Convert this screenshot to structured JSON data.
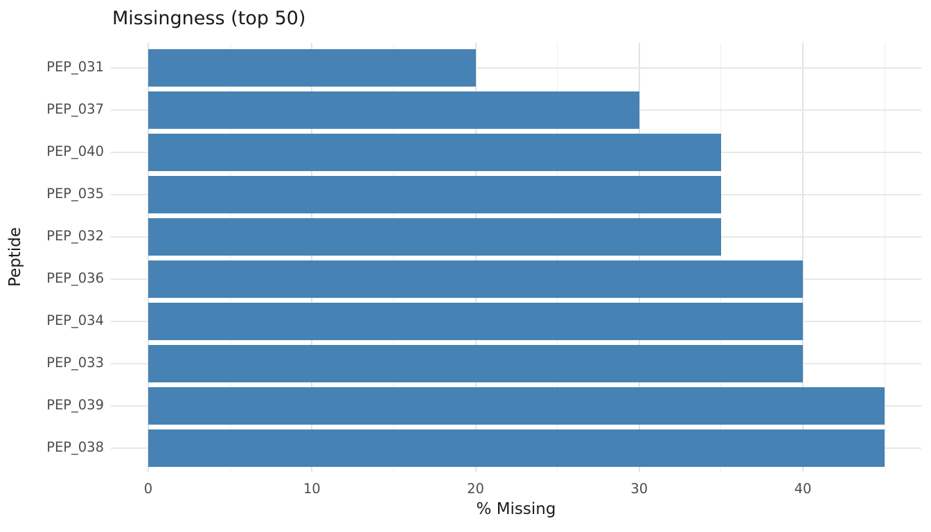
{
  "chart_data": {
    "type": "bar",
    "orientation": "horizontal",
    "title": "Missingness (top 50)",
    "xlabel": "% Missing",
    "ylabel": "Peptide",
    "categories": [
      "PEP_031",
      "PEP_037",
      "PEP_040",
      "PEP_035",
      "PEP_032",
      "PEP_036",
      "PEP_034",
      "PEP_033",
      "PEP_039",
      "PEP_038"
    ],
    "values": [
      20,
      30,
      35,
      35,
      35,
      40,
      40,
      40,
      45,
      45
    ],
    "x_major_ticks": [
      0,
      10,
      20,
      30,
      40
    ],
    "x_minor_gridlines": [
      5,
      15,
      25,
      35,
      45
    ],
    "xlim": [
      -2.25,
      47.25
    ],
    "grid": "major-and-minor-vertical, major-horizontal-at-category-centers",
    "legend": "none",
    "colors": {
      "bar": "#4682b4",
      "grid_major": "#e2e2e2",
      "grid_minor": "#ededed",
      "grid_horizontal": "#e7e7e7",
      "tick_label": "#4d4d4d",
      "axis_title": "#1a1a1a",
      "title": "#1a1a1a",
      "background": "#ffffff"
    }
  }
}
